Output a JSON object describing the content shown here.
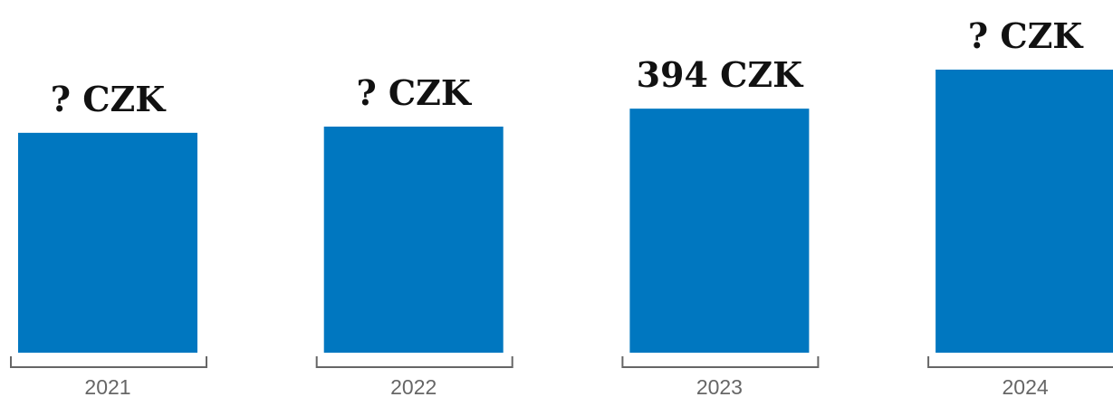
{
  "chart_data": {
    "type": "bar",
    "categories": [
      "2021",
      "2022",
      "2023",
      "2024"
    ],
    "values": [
      355,
      365,
      394,
      457
    ],
    "value_labels": [
      "? CZK",
      "? CZK",
      "394 CZK",
      "? CZK"
    ],
    "color": "#0077c0"
  }
}
